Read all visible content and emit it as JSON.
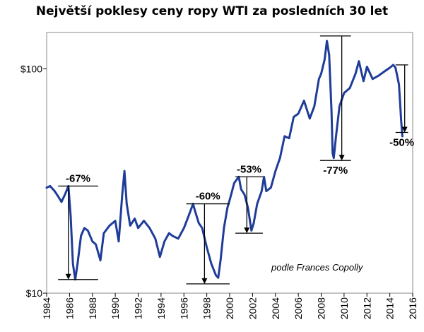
{
  "chart_data": {
    "type": "line",
    "title": "Největší poklesy ceny ropy WTI za posledních 30 let",
    "credit": "podle Frances Copolly",
    "xlabel": "",
    "ylabel": "",
    "y_scale": "log",
    "ylim": [
      10,
      145
    ],
    "xlim": [
      1984,
      2016
    ],
    "y_ticks": [
      {
        "value": 100,
        "label": "$100"
      },
      {
        "value": 10,
        "label": "$10"
      }
    ],
    "x_ticks": [
      1984,
      1986,
      1988,
      1990,
      1992,
      1994,
      1996,
      1998,
      2000,
      2002,
      2004,
      2006,
      2008,
      2010,
      2012,
      2014,
      2016
    ],
    "grid": false,
    "series": [
      {
        "name": "",
        "color": "#1f3c99",
        "x": [
          1984.0,
          1984.3,
          1984.7,
          1985.0,
          1985.3,
          1985.6,
          1985.9,
          1986.1,
          1986.3,
          1986.5,
          1986.7,
          1987.0,
          1987.3,
          1987.6,
          1988.0,
          1988.3,
          1988.7,
          1989.0,
          1989.5,
          1990.0,
          1990.3,
          1990.6,
          1990.8,
          1991.0,
          1991.3,
          1991.7,
          1992.0,
          1992.5,
          1993.0,
          1993.5,
          1993.9,
          1994.3,
          1994.7,
          1995.0,
          1995.5,
          1996.0,
          1996.4,
          1996.8,
          1997.0,
          1997.3,
          1997.6,
          1998.0,
          1998.4,
          1998.8,
          1999.0,
          1999.2,
          1999.5,
          1999.8,
          2000.0,
          2000.4,
          2000.8,
          2001.0,
          2001.3,
          2001.6,
          2001.9,
          2002.1,
          2002.4,
          2002.8,
          2003.0,
          2003.2,
          2003.6,
          2004.0,
          2004.4,
          2004.8,
          2005.2,
          2005.6,
          2006.0,
          2006.5,
          2007.0,
          2007.4,
          2007.8,
          2008.0,
          2008.3,
          2008.5,
          2008.7,
          2008.9,
          2009.0,
          2009.1,
          2009.3,
          2009.6,
          2010.0,
          2010.5,
          2011.0,
          2011.3,
          2011.7,
          2012.0,
          2012.5,
          2013.0,
          2013.5,
          2014.0,
          2014.3,
          2014.5,
          2014.8,
          2015.0,
          2015.1
        ],
        "y": [
          29.5,
          30.0,
          28.5,
          27.0,
          25.5,
          27.5,
          30.0,
          22.0,
          13.5,
          11.5,
          13.5,
          18.0,
          19.5,
          19.0,
          17.0,
          16.5,
          14.0,
          18.5,
          20.0,
          21.0,
          17.0,
          27.0,
          35.0,
          25.0,
          20.0,
          21.5,
          19.5,
          21.0,
          19.5,
          17.5,
          14.5,
          17.0,
          18.5,
          18.0,
          17.5,
          19.5,
          22.0,
          25.0,
          23.0,
          20.5,
          19.5,
          16.0,
          13.5,
          12.0,
          11.7,
          14.0,
          19.5,
          24.0,
          26.0,
          31.0,
          33.0,
          29.0,
          27.5,
          24.0,
          19.0,
          20.5,
          25.0,
          28.5,
          33.0,
          28.5,
          29.5,
          35.0,
          40.0,
          50.0,
          49.0,
          61.0,
          63.0,
          72.0,
          60.0,
          68.0,
          90.0,
          95.0,
          110.0,
          133.0,
          115.0,
          65.0,
          42.0,
          40.0,
          50.0,
          68.0,
          78.0,
          82.0,
          95.0,
          108.0,
          88.0,
          102.0,
          90.0,
          93.0,
          97.0,
          101.0,
          104.0,
          101.0,
          85.0,
          58.0,
          50.0
        ]
      }
    ],
    "annotations": [
      {
        "label": "-67%",
        "from_x": 1985.9,
        "from_y": 30.0,
        "to_y": 11.5,
        "line_x0": 1985.0,
        "line_x1": 1988.5
      },
      {
        "label": "-60%",
        "from_x": 1997.8,
        "from_y": 25.0,
        "to_y": 11.0,
        "line_x0": 1996.2,
        "line_x1": 2000.0
      },
      {
        "label": "-53%",
        "from_x": 2001.5,
        "from_y": 33.0,
        "to_y": 18.5,
        "line_x0": 2000.5,
        "line_x1": 2002.9
      },
      {
        "label": "-77%",
        "from_x": 2009.8,
        "from_y": 140.0,
        "to_y": 39.0,
        "line_x0": 2007.9,
        "line_x1": 2010.6
      },
      {
        "label": "-50%",
        "from_x": 2015.3,
        "from_y": 104.0,
        "to_y": 52.0,
        "line_x0": 2014.5,
        "line_x1": 2015.6
      }
    ]
  }
}
